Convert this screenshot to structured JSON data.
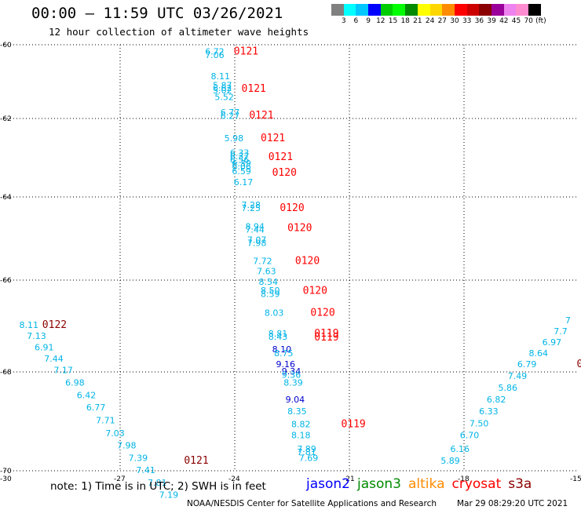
{
  "header": {
    "title": "00:00 – 11:59 UTC 03/26/2021",
    "subtitle": "12 hour collection of altimeter wave heights"
  },
  "colorbar": {
    "colors": [
      "#808080",
      "#00ffff",
      "#00c8ff",
      "#0000ff",
      "#00cd00",
      "#00ff00",
      "#008b00",
      "#ffff00",
      "#ffd700",
      "#ff8c00",
      "#ff0000",
      "#cd0000",
      "#8b0000",
      "#9a009a",
      "#ee82ee",
      "#ff8cd0",
      "#000000"
    ],
    "labels": [
      "3",
      "6",
      "9",
      "12",
      "15",
      "18",
      "21",
      "24",
      "27",
      "30",
      "33",
      "36",
      "39",
      "42",
      "45",
      "70",
      "(ft)"
    ]
  },
  "axes": {
    "lat_labels": [
      "-60",
      "-62",
      "-64",
      "-66",
      "-68",
      "-70"
    ],
    "lon_labels": [
      "-30",
      "-27",
      "-24",
      "-21",
      "-18",
      "-15"
    ]
  },
  "map_data": {
    "lat_range": [
      -70,
      -60
    ],
    "lon_range": [
      -30,
      -15
    ],
    "date_stamps": [
      {
        "text": "0121",
        "color": "#ff0000",
        "lon": -24.0,
        "lat": -60.27
      },
      {
        "text": "0121",
        "color": "#ff0000",
        "lon": -23.8,
        "lat": -61.28
      },
      {
        "text": "0121",
        "color": "#ff0000",
        "lon": -23.6,
        "lat": -62.0
      },
      {
        "text": "0121",
        "color": "#ff0000",
        "lon": -23.3,
        "lat": -62.58
      },
      {
        "text": "0121",
        "color": "#ff0000",
        "lon": -23.1,
        "lat": -63.06
      },
      {
        "text": "0120",
        "color": "#ff0000",
        "lon": -23.0,
        "lat": -63.46
      },
      {
        "text": "0120",
        "color": "#ff0000",
        "lon": -22.8,
        "lat": -64.34
      },
      {
        "text": "0120",
        "color": "#ff0000",
        "lon": -22.6,
        "lat": -64.82
      },
      {
        "text": "0120",
        "color": "#ff0000",
        "lon": -22.4,
        "lat": -65.61
      },
      {
        "text": "0120",
        "color": "#ff0000",
        "lon": -22.2,
        "lat": -66.3
      },
      {
        "text": "0120",
        "color": "#ff0000",
        "lon": -22.0,
        "lat": -66.78
      },
      {
        "text": "0119",
        "color": "#ff0000",
        "lon": -21.9,
        "lat": -67.23
      },
      {
        "text": "0119",
        "color": "#ff0000",
        "lon": -21.9,
        "lat": -67.32
      },
      {
        "text": "0119",
        "color": "#ff0000",
        "lon": -21.2,
        "lat": -69.12
      },
      {
        "text": "0122",
        "color": "#8b0000",
        "lon": -29.0,
        "lat": -67.04
      },
      {
        "text": "0121",
        "color": "#8b0000",
        "lon": -25.3,
        "lat": -69.86
      },
      {
        "text": "0",
        "color": "#8b0000",
        "lon": -15.05,
        "lat": -67.9
      }
    ],
    "swh_labels": [
      {
        "text": "6.72",
        "color": "#00b4e6",
        "lon": -24.75,
        "lat": -60.27
      },
      {
        "text": "7.06",
        "color": "#00b4e6",
        "lon": -24.75,
        "lat": -60.36
      },
      {
        "text": "8.11",
        "color": "#00b4e6",
        "lon": -24.6,
        "lat": -60.94
      },
      {
        "text": "5.87",
        "color": "#00b4e6",
        "lon": -24.55,
        "lat": -61.18
      },
      {
        "text": "6.62",
        "color": "#00b4e6",
        "lon": -24.55,
        "lat": -61.25
      },
      {
        "text": "5.02",
        "color": "#00b4e6",
        "lon": -24.55,
        "lat": -61.32
      },
      {
        "text": "5.52",
        "color": "#00b4e6",
        "lon": -24.5,
        "lat": -61.5
      },
      {
        "text": "6.77",
        "color": "#00b4e6",
        "lon": -24.35,
        "lat": -61.92
      },
      {
        "text": "6.27",
        "color": "#00b4e6",
        "lon": -24.35,
        "lat": -62.01
      },
      {
        "text": "5.98",
        "color": "#00b4e6",
        "lon": -24.25,
        "lat": -62.58
      },
      {
        "text": "6.33",
        "color": "#00b4e6",
        "lon": -24.1,
        "lat": -62.95
      },
      {
        "text": "6.37",
        "color": "#00b4e6",
        "lon": -24.1,
        "lat": -63.04
      },
      {
        "text": "6.56",
        "color": "#00b4e6",
        "lon": -24.1,
        "lat": -63.13
      },
      {
        "text": "6.39",
        "color": "#00b4e6",
        "lon": -24.05,
        "lat": -63.22
      },
      {
        "text": "6.06",
        "color": "#00b4e6",
        "lon": -24.05,
        "lat": -63.3
      },
      {
        "text": "6.59",
        "color": "#00b4e6",
        "lon": -24.05,
        "lat": -63.42
      },
      {
        "text": "6.17",
        "color": "#00b4e6",
        "lon": -24.0,
        "lat": -63.7
      },
      {
        "text": "7.28",
        "color": "#00b4e6",
        "lon": -23.8,
        "lat": -64.26
      },
      {
        "text": "7.25",
        "color": "#00b4e6",
        "lon": -23.8,
        "lat": -64.34
      },
      {
        "text": "8.94",
        "color": "#00b4e6",
        "lon": -23.7,
        "lat": -64.78
      },
      {
        "text": "7.44",
        "color": "#00b4e6",
        "lon": -23.7,
        "lat": -64.86
      },
      {
        "text": "7.07",
        "color": "#00b4e6",
        "lon": -23.65,
        "lat": -65.1
      },
      {
        "text": "7.98",
        "color": "#00b4e6",
        "lon": -23.65,
        "lat": -65.18
      },
      {
        "text": "7.72",
        "color": "#00b4e6",
        "lon": -23.5,
        "lat": -65.61
      },
      {
        "text": "7.63",
        "color": "#00b4e6",
        "lon": -23.4,
        "lat": -65.86
      },
      {
        "text": "8.54",
        "color": "#00b4e6",
        "lon": -23.35,
        "lat": -66.1
      },
      {
        "text": "8.50",
        "color": "#00b4e6",
        "lon": -23.3,
        "lat": -66.29
      },
      {
        "text": "8.59",
        "color": "#00b4e6",
        "lon": -23.3,
        "lat": -66.37
      },
      {
        "text": "8.03",
        "color": "#00b4e6",
        "lon": -23.2,
        "lat": -66.78
      },
      {
        "text": "8.81",
        "color": "#00b4e6",
        "lon": -23.1,
        "lat": -67.23
      },
      {
        "text": "8.43",
        "color": "#00b4e6",
        "lon": -23.1,
        "lat": -67.3
      },
      {
        "text": "8.10",
        "color": "#0000cd",
        "lon": -23.0,
        "lat": -67.57
      },
      {
        "text": "8.75",
        "color": "#00b4e6",
        "lon": -22.95,
        "lat": -67.66
      },
      {
        "text": "9.16",
        "color": "#0000cd",
        "lon": -22.9,
        "lat": -67.9
      },
      {
        "text": "9.34",
        "color": "#0000cd",
        "lon": -22.75,
        "lat": -68.05
      },
      {
        "text": "9.36",
        "color": "#00b4e6",
        "lon": -22.75,
        "lat": -68.12
      },
      {
        "text": "8.39",
        "color": "#00b4e6",
        "lon": -22.7,
        "lat": -68.28
      },
      {
        "text": "9.04",
        "color": "#0000cd",
        "lon": -22.65,
        "lat": -68.62
      },
      {
        "text": "8.35",
        "color": "#00b4e6",
        "lon": -22.6,
        "lat": -68.86
      },
      {
        "text": "8.82",
        "color": "#00b4e6",
        "lon": -22.5,
        "lat": -69.12
      },
      {
        "text": "8.18",
        "color": "#00b4e6",
        "lon": -22.5,
        "lat": -69.34
      },
      {
        "text": "7.89",
        "color": "#00b4e6",
        "lon": -22.35,
        "lat": -69.62
      },
      {
        "text": "7.81",
        "color": "#00b4e6",
        "lon": -22.35,
        "lat": -69.68
      },
      {
        "text": "7.69",
        "color": "#00b4e6",
        "lon": -22.3,
        "lat": -69.8
      },
      {
        "text": "8.11",
        "color": "#00b4e6",
        "lon": -29.6,
        "lat": -67.04
      },
      {
        "text": "7.13",
        "color": "#00b4e6",
        "lon": -29.4,
        "lat": -67.28
      },
      {
        "text": "6.91",
        "color": "#00b4e6",
        "lon": -29.2,
        "lat": -67.53
      },
      {
        "text": "7.44",
        "color": "#00b4e6",
        "lon": -28.95,
        "lat": -67.78
      },
      {
        "text": "7.17",
        "color": "#00b4e6",
        "lon": -28.7,
        "lat": -68.02
      },
      {
        "text": "6.98",
        "color": "#00b4e6",
        "lon": -28.4,
        "lat": -68.28
      },
      {
        "text": "6.42",
        "color": "#00b4e6",
        "lon": -28.1,
        "lat": -68.53
      },
      {
        "text": "6.77",
        "color": "#00b4e6",
        "lon": -27.85,
        "lat": -68.78
      },
      {
        "text": "7.71",
        "color": "#00b4e6",
        "lon": -27.6,
        "lat": -69.04
      },
      {
        "text": "7.03",
        "color": "#00b4e6",
        "lon": -27.35,
        "lat": -69.3
      },
      {
        "text": "7.98",
        "color": "#00b4e6",
        "lon": -27.05,
        "lat": -69.55
      },
      {
        "text": "7.39",
        "color": "#00b4e6",
        "lon": -26.75,
        "lat": -69.8
      },
      {
        "text": "7.41",
        "color": "#00b4e6",
        "lon": -26.55,
        "lat": -70.05
      },
      {
        "text": "7.81",
        "color": "#00b4e6",
        "lon": -26.25,
        "lat": -70.3
      },
      {
        "text": "7.19",
        "color": "#00b4e6",
        "lon": -25.95,
        "lat": -70.55
      },
      {
        "text": "5.89",
        "color": "#00b4e6",
        "lon": -18.6,
        "lat": -69.86
      },
      {
        "text": "6.16",
        "color": "#00b4e6",
        "lon": -18.35,
        "lat": -69.62
      },
      {
        "text": "6.70",
        "color": "#00b4e6",
        "lon": -18.1,
        "lat": -69.34
      },
      {
        "text": "7.50",
        "color": "#00b4e6",
        "lon": -17.85,
        "lat": -69.1
      },
      {
        "text": "6.33",
        "color": "#00b4e6",
        "lon": -17.6,
        "lat": -68.86
      },
      {
        "text": "6.82",
        "color": "#00b4e6",
        "lon": -17.4,
        "lat": -68.62
      },
      {
        "text": "5.86",
        "color": "#00b4e6",
        "lon": -17.1,
        "lat": -68.38
      },
      {
        "text": "7.49",
        "color": "#00b4e6",
        "lon": -16.85,
        "lat": -68.14
      },
      {
        "text": "6.79",
        "color": "#00b4e6",
        "lon": -16.6,
        "lat": -67.9
      },
      {
        "text": "8.64",
        "color": "#00b4e6",
        "lon": -16.3,
        "lat": -67.66
      },
      {
        "text": "6.97",
        "color": "#00b4e6",
        "lon": -15.95,
        "lat": -67.42
      },
      {
        "text": "7.7",
        "color": "#00b4e6",
        "lon": -15.65,
        "lat": -67.18
      },
      {
        "text": "7",
        "color": "#00b4e6",
        "lon": -15.35,
        "lat": -66.94
      }
    ]
  },
  "footer": {
    "note": "note:  1) Time is in UTC;  2) SWH is in feet",
    "satellites": [
      {
        "name": "jason2",
        "color": "#0000ff"
      },
      {
        "name": "jason3",
        "color": "#008b00"
      },
      {
        "name": "altika",
        "color": "#ff8c00"
      },
      {
        "name": "cryosat",
        "color": "#ff0000"
      },
      {
        "name": "s3a",
        "color": "#8b0000"
      }
    ],
    "credit": "NOAA/NESDIS Center for Satellite Applications and Research",
    "timestamp": "Mar 29 08:29:20 UTC 2021"
  }
}
